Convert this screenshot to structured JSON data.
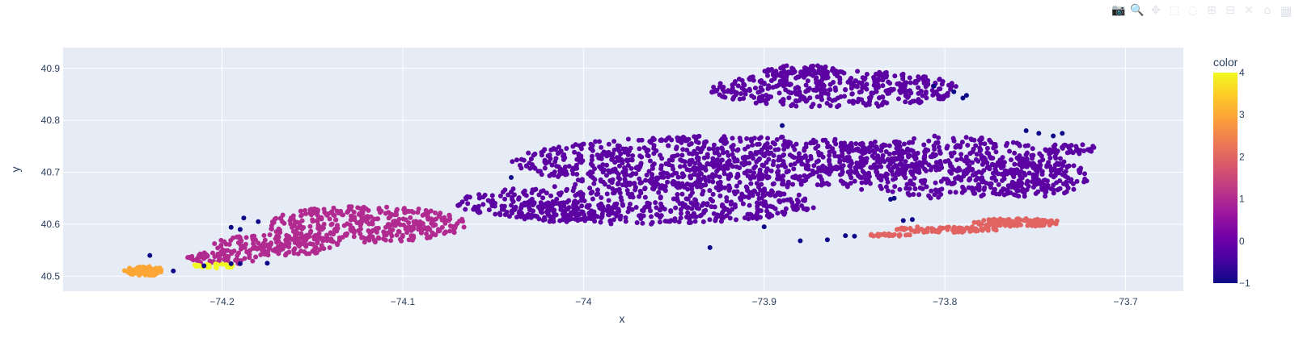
{
  "toolbar": {
    "buttons": [
      {
        "name": "camera-icon",
        "glyph": "📷"
      },
      {
        "name": "zoom-icon",
        "glyph": "🔍"
      },
      {
        "name": "pan-icon",
        "glyph": "✥"
      },
      {
        "name": "box-select-icon",
        "glyph": "⬚"
      },
      {
        "name": "lasso-select-icon",
        "glyph": "◌"
      },
      {
        "name": "zoom-in-icon",
        "glyph": "⊞"
      },
      {
        "name": "zoom-out-icon",
        "glyph": "⊟"
      },
      {
        "name": "autoscale-icon",
        "glyph": "✕"
      },
      {
        "name": "home-icon",
        "glyph": "⌂"
      },
      {
        "name": "plotly-logo-icon",
        "glyph": "▦"
      }
    ]
  },
  "chart_data": {
    "type": "scatter",
    "title": "",
    "xlabel": "x",
    "ylabel": "y",
    "xlim": [
      -74.288,
      -73.668
    ],
    "ylim": [
      40.471,
      40.94
    ],
    "x_ticks": [
      -74.2,
      -74.1,
      -74,
      -73.9,
      -73.8,
      -73.7
    ],
    "x_tick_labels": [
      "−74.2",
      "−74.1",
      "−74",
      "−73.9",
      "−73.8",
      "−73.7"
    ],
    "y_ticks": [
      40.5,
      40.6,
      40.7,
      40.8,
      40.9
    ],
    "y_tick_labels": [
      "40.5",
      "40.6",
      "40.7",
      "40.8",
      "40.9"
    ],
    "grid": true,
    "plot_bgcolor": "#E5ECF6",
    "colorbar": {
      "title": "color",
      "min": -1,
      "max": 4,
      "ticks": [
        -1,
        0,
        1,
        2,
        3,
        4
      ],
      "tick_labels": [
        "−1",
        "0",
        "1",
        "2",
        "3",
        "4"
      ],
      "colorscale": [
        "#0d0887",
        "#46039f",
        "#7201a8",
        "#9c179e",
        "#bd3786",
        "#d8576b",
        "#ed7953",
        "#fb9f3a",
        "#fdca26",
        "#f0f921"
      ]
    },
    "clusters": [
      {
        "label": 0,
        "color": "#5c02a3",
        "regions": [
          {
            "cx": -73.92,
            "cy": 40.72,
            "rx": 0.12,
            "ry": 0.05,
            "n": 900
          },
          {
            "cx": -73.97,
            "cy": 40.64,
            "rx": 0.1,
            "ry": 0.04,
            "n": 500
          },
          {
            "cx": -73.86,
            "cy": 40.86,
            "rx": 0.07,
            "ry": 0.035,
            "n": 400
          },
          {
            "cx": -73.8,
            "cy": 40.71,
            "rx": 0.07,
            "ry": 0.06,
            "n": 400
          },
          {
            "cx": -73.76,
            "cy": 40.69,
            "rx": 0.04,
            "ry": 0.04,
            "n": 200
          },
          {
            "cx": -73.73,
            "cy": 40.745,
            "rx": 0.015,
            "ry": 0.01,
            "n": 40
          },
          {
            "cx": -74.01,
            "cy": 40.625,
            "rx": 0.03,
            "ry": 0.02,
            "n": 120
          },
          {
            "cx": -73.88,
            "cy": 40.895,
            "rx": 0.02,
            "ry": 0.012,
            "n": 60
          }
        ]
      },
      {
        "label": 1,
        "color": "#b12a90",
        "regions": [
          {
            "cx": -74.12,
            "cy": 40.6,
            "rx": 0.055,
            "ry": 0.035,
            "n": 360
          },
          {
            "cx": -74.17,
            "cy": 40.56,
            "rx": 0.035,
            "ry": 0.02,
            "n": 160
          },
          {
            "cx": -74.2,
            "cy": 40.535,
            "rx": 0.02,
            "ry": 0.012,
            "n": 60
          }
        ]
      },
      {
        "label": 2,
        "color": "#e16462",
        "regions": [
          {
            "cx": -73.76,
            "cy": 40.603,
            "rx": 0.025,
            "ry": 0.008,
            "n": 120
          },
          {
            "cx": -73.8,
            "cy": 40.59,
            "rx": 0.03,
            "ry": 0.006,
            "n": 80
          },
          {
            "cx": -73.83,
            "cy": 40.579,
            "rx": 0.012,
            "ry": 0.003,
            "n": 25
          }
        ]
      },
      {
        "label": 3,
        "color": "#fca636",
        "regions": [
          {
            "cx": -74.243,
            "cy": 40.51,
            "rx": 0.012,
            "ry": 0.009,
            "n": 70
          }
        ]
      },
      {
        "label": 4,
        "color": "#f0f921",
        "regions": [
          {
            "cx": -74.205,
            "cy": 40.52,
            "rx": 0.012,
            "ry": 0.005,
            "n": 30
          }
        ]
      },
      {
        "label": -1,
        "color": "#0d0887",
        "points": [
          [
            -74.24,
            40.54
          ],
          [
            -74.227,
            40.51
          ],
          [
            -74.21,
            40.52
          ],
          [
            -74.195,
            40.594
          ],
          [
            -74.19,
            40.59
          ],
          [
            -74.188,
            40.612
          ],
          [
            -74.195,
            40.524
          ],
          [
            -74.19,
            40.524
          ],
          [
            -74.175,
            40.525
          ],
          [
            -74.18,
            40.605
          ],
          [
            -74.04,
            40.69
          ],
          [
            -73.93,
            40.555
          ],
          [
            -73.9,
            40.595
          ],
          [
            -73.88,
            40.568
          ],
          [
            -73.865,
            40.57
          ],
          [
            -73.855,
            40.578
          ],
          [
            -73.85,
            40.577
          ],
          [
            -73.823,
            40.607
          ],
          [
            -73.818,
            40.609
          ],
          [
            -73.83,
            40.648
          ],
          [
            -73.828,
            40.65
          ],
          [
            -73.89,
            40.79
          ],
          [
            -73.806,
            40.866
          ],
          [
            -73.795,
            40.855
          ],
          [
            -73.79,
            40.843
          ],
          [
            -73.788,
            40.848
          ],
          [
            -73.755,
            40.78
          ],
          [
            -73.748,
            40.775
          ],
          [
            -73.74,
            40.77
          ],
          [
            -73.735,
            40.775
          ]
        ]
      }
    ]
  }
}
